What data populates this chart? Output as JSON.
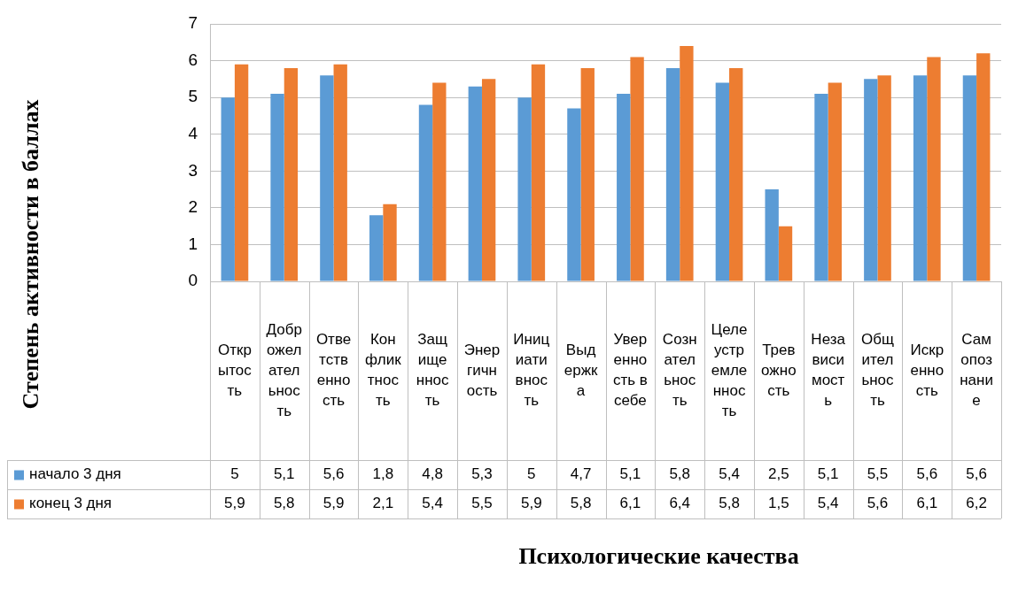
{
  "chart_data": {
    "type": "bar",
    "annotations": [
      "Психологические качества",
      "Степень активности в баллах"
    ],
    "categories": [
      "Открытость",
      "Доброжелательность",
      "Ответственность",
      "Конфликтность",
      "Защищенность",
      "Энергичность",
      "Инициативность",
      "Выдержка",
      "Уверенность в себе",
      "Сознательность",
      "Целеустремленность",
      "Тревожность",
      "Независимость",
      "Общительность",
      "Искренность",
      "Самопознание"
    ],
    "series": [
      {
        "name": "начало 3 дня",
        "color": "#5b9bd5",
        "values": [
          5,
          5.1,
          5.6,
          1.8,
          4.8,
          5.3,
          5,
          4.7,
          5.1,
          5.8,
          5.4,
          2.5,
          5.1,
          5.5,
          5.6,
          5.6
        ],
        "value_labels": [
          "5",
          "5,1",
          "5,6",
          "1,8",
          "4,8",
          "5,3",
          "5",
          "4,7",
          "5,1",
          "5,8",
          "5,4",
          "2,5",
          "5,1",
          "5,5",
          "5,6",
          "5,6"
        ]
      },
      {
        "name": "конец 3 дня",
        "color": "#ed7d31",
        "values": [
          5.9,
          5.8,
          5.9,
          2.1,
          5.4,
          5.5,
          5.9,
          5.8,
          6.1,
          6.4,
          5.8,
          1.5,
          5.4,
          5.6,
          6.1,
          6.2
        ],
        "value_labels": [
          "5,9",
          "5,8",
          "5,9",
          "2,1",
          "5,4",
          "5,5",
          "5,9",
          "5,8",
          "6,1",
          "6,4",
          "5,8",
          "1,5",
          "5,4",
          "5,6",
          "6,1",
          "6,2"
        ]
      }
    ],
    "ylim": [
      0,
      7
    ],
    "yticks": [
      0,
      1,
      2,
      3,
      4,
      5,
      6,
      7
    ],
    "grid": "y",
    "legend": "bottom"
  }
}
